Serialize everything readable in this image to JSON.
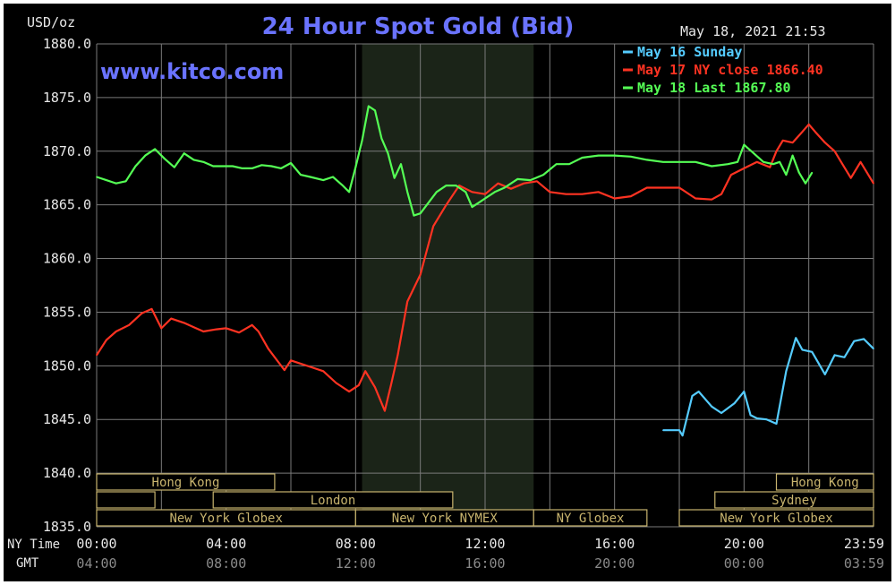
{
  "header": {
    "unit_label": "USD/oz",
    "title": "24 Hour Spot Gold (Bid)",
    "timestamp": "May 18, 2021 21:53",
    "watermark": "www.kitco.com",
    "row_label_ny": "NY Time",
    "row_label_gmt": "GMT"
  },
  "legend": [
    {
      "text": "May 16 Sunday",
      "color": "#55ccff"
    },
    {
      "text": "May 17 NY close 1866.40",
      "color": "#ff3322"
    },
    {
      "text": "May 18 Last 1867.80",
      "color": "#55ff55"
    }
  ],
  "colors": {
    "background": "#000000",
    "grid": "#7a7a7a",
    "axis_text": "#e8e8e8",
    "title": "#6a73ff",
    "session_box": "#c8b46e",
    "ny_session_shade": "#1b2418"
  },
  "sessions": [
    {
      "rows": [
        {
          "label": "Hong Kong",
          "start": 0,
          "end": 2.2
        },
        {
          "label": "",
          "start": 0,
          "end": 0.6
        },
        {
          "label": "London",
          "start": 4.0,
          "end": 4.5
        },
        {
          "label": "New York Globex",
          "start": 4.5,
          "end": 4.5
        }
      ]
    }
  ],
  "session_boxes": [
    {
      "row": 0,
      "label": "Hong Kong",
      "start": 0.0,
      "end": 5.5
    },
    {
      "row": 1,
      "label": "",
      "start": 0.0,
      "end": 1.8
    },
    {
      "row": 1,
      "label": "London",
      "start": 3.6,
      "end": 11.0
    },
    {
      "row": 2,
      "label": "New York Globex",
      "start": 0.0,
      "end": 8.0
    },
    {
      "row": 2,
      "label": "New York NYMEX",
      "start": 8.0,
      "end": 13.5
    },
    {
      "row": 2,
      "label": "NY Globex",
      "start": 13.5,
      "end": 17.0
    },
    {
      "row": 1,
      "label": "Sydney",
      "start": 19.1,
      "end": 24.0
    },
    {
      "row": 0,
      "label": "Hong Kong",
      "start": 21.0,
      "end": 24.0
    },
    {
      "row": 2,
      "label": "New York Globex",
      "start": 18.0,
      "end": 24.0
    }
  ],
  "chart_data": {
    "type": "line",
    "title": "24 Hour Spot Gold (Bid)",
    "ylabel": "USD/oz",
    "ylim": [
      1835,
      1880
    ],
    "yticks": [
      "1880.0",
      "1875.0",
      "1870.0",
      "1865.0",
      "1860.0",
      "1855.0",
      "1850.0",
      "1845.0",
      "1840.0",
      "1835.0"
    ],
    "xlim_hours": [
      0,
      24
    ],
    "xticks_ny": [
      {
        "h": 0,
        "label": "00:00"
      },
      {
        "h": 4,
        "label": "04:00"
      },
      {
        "h": 8,
        "label": "08:00"
      },
      {
        "h": 12,
        "label": "12:00"
      },
      {
        "h": 16,
        "label": "16:00"
      },
      {
        "h": 20,
        "label": "20:00"
      },
      {
        "h": 24,
        "label": "23:59"
      }
    ],
    "xticks_gmt": [
      {
        "h": 0,
        "label": "04:00"
      },
      {
        "h": 4,
        "label": "08:00"
      },
      {
        "h": 8,
        "label": "12:00"
      },
      {
        "h": 12,
        "label": "16:00"
      },
      {
        "h": 16,
        "label": "20:00"
      },
      {
        "h": 20,
        "label": "00:00"
      },
      {
        "h": 24,
        "label": "03:59"
      }
    ],
    "grid": true,
    "shaded_session_hours": [
      8.2,
      13.5
    ],
    "legend_position": "top-right",
    "series": [
      {
        "name": "May 16 Sunday",
        "color": "#55ccff",
        "x": [
          17.5,
          18.0,
          18.1,
          18.4,
          18.6,
          19.0,
          19.3,
          19.7,
          20.0,
          20.2,
          20.4,
          20.7,
          21.0,
          21.3,
          21.6,
          21.8,
          22.1,
          22.5,
          22.8,
          23.1,
          23.4,
          23.7,
          24.0
        ],
        "y": [
          1844.0,
          1844.0,
          1843.5,
          1847.2,
          1847.6,
          1846.2,
          1845.6,
          1846.5,
          1847.6,
          1845.4,
          1845.1,
          1845.0,
          1844.6,
          1849.5,
          1852.6,
          1851.5,
          1851.3,
          1849.2,
          1851.0,
          1850.8,
          1852.3,
          1852.5,
          1851.6
        ]
      },
      {
        "name": "May 17 NY close 1866.40",
        "color": "#ff3322",
        "x": [
          0.0,
          0.3,
          0.6,
          1.0,
          1.4,
          1.7,
          2.0,
          2.3,
          2.7,
          3.0,
          3.3,
          3.7,
          4.0,
          4.4,
          4.8,
          5.0,
          5.3,
          5.6,
          5.8,
          6.0,
          6.3,
          6.6,
          7.0,
          7.4,
          7.8,
          8.1,
          8.3,
          8.6,
          8.9,
          9.1,
          9.3,
          9.6,
          10.0,
          10.4,
          10.8,
          11.2,
          11.6,
          12.0,
          12.4,
          12.8,
          13.2,
          13.6,
          14.0,
          14.5,
          15.0,
          15.5,
          16.0,
          16.5,
          17.0,
          17.5,
          18.0,
          18.5,
          19.0,
          19.3,
          19.6,
          20.0,
          20.4,
          20.8,
          21.0,
          21.2,
          21.5,
          21.8,
          22.0,
          22.2,
          22.5,
          22.8,
          23.0,
          23.3,
          23.6,
          24.0
        ],
        "y": [
          1851.0,
          1852.4,
          1853.2,
          1853.8,
          1854.9,
          1855.3,
          1853.5,
          1854.4,
          1854.0,
          1853.6,
          1853.2,
          1853.4,
          1853.5,
          1853.1,
          1853.8,
          1853.2,
          1851.6,
          1850.4,
          1849.6,
          1850.5,
          1850.2,
          1849.9,
          1849.5,
          1848.4,
          1847.6,
          1848.2,
          1849.5,
          1848.0,
          1845.8,
          1848.3,
          1851.0,
          1856.0,
          1858.5,
          1863.0,
          1865.0,
          1866.8,
          1866.2,
          1866.0,
          1867.0,
          1866.5,
          1867.0,
          1867.2,
          1866.2,
          1866.0,
          1866.0,
          1866.2,
          1865.6,
          1865.8,
          1866.6,
          1866.6,
          1866.6,
          1865.6,
          1865.5,
          1866.0,
          1867.8,
          1868.4,
          1869.0,
          1868.5,
          1870.0,
          1871.0,
          1870.8,
          1871.8,
          1872.5,
          1871.8,
          1870.8,
          1870.0,
          1869.0,
          1867.5,
          1869.0,
          1867.0
        ]
      },
      {
        "name": "May 18 Last 1867.80",
        "color": "#55ff55",
        "x": [
          0.0,
          0.3,
          0.6,
          0.9,
          1.2,
          1.5,
          1.8,
          2.1,
          2.4,
          2.7,
          3.0,
          3.3,
          3.6,
          3.9,
          4.2,
          4.5,
          4.8,
          5.1,
          5.4,
          5.7,
          6.0,
          6.3,
          6.6,
          7.0,
          7.3,
          7.6,
          7.8,
          8.0,
          8.2,
          8.4,
          8.6,
          8.8,
          9.0,
          9.2,
          9.4,
          9.6,
          9.8,
          10.0,
          10.2,
          10.5,
          10.8,
          11.1,
          11.4,
          11.6,
          11.8,
          12.0,
          12.3,
          12.6,
          13.0,
          13.4,
          13.8,
          14.2,
          14.6,
          15.0,
          15.5,
          16.0,
          16.5,
          17.0,
          17.5,
          18.0,
          18.5,
          19.0,
          19.5,
          19.8,
          20.0,
          20.3,
          20.6,
          20.9,
          21.1,
          21.3,
          21.5,
          21.7,
          21.9,
          22.1
        ],
        "y": [
          1867.6,
          1867.3,
          1867.0,
          1867.2,
          1868.6,
          1869.6,
          1870.2,
          1869.3,
          1868.5,
          1869.8,
          1869.2,
          1869.0,
          1868.6,
          1868.6,
          1868.6,
          1868.4,
          1868.4,
          1868.7,
          1868.6,
          1868.4,
          1868.9,
          1867.8,
          1867.6,
          1867.3,
          1867.6,
          1866.8,
          1866.2,
          1868.5,
          1871.0,
          1874.2,
          1873.8,
          1871.2,
          1869.8,
          1867.5,
          1868.8,
          1866.2,
          1864.0,
          1864.2,
          1865.0,
          1866.2,
          1866.8,
          1866.8,
          1866.2,
          1864.8,
          1865.2,
          1865.6,
          1866.2,
          1866.6,
          1867.4,
          1867.3,
          1867.8,
          1868.8,
          1868.8,
          1869.4,
          1869.6,
          1869.6,
          1869.5,
          1869.2,
          1869.0,
          1869.0,
          1869.0,
          1868.6,
          1868.8,
          1869.0,
          1870.6,
          1869.8,
          1869.0,
          1868.8,
          1869.0,
          1867.8,
          1869.6,
          1868.0,
          1867.0,
          1868.0
        ]
      }
    ]
  }
}
